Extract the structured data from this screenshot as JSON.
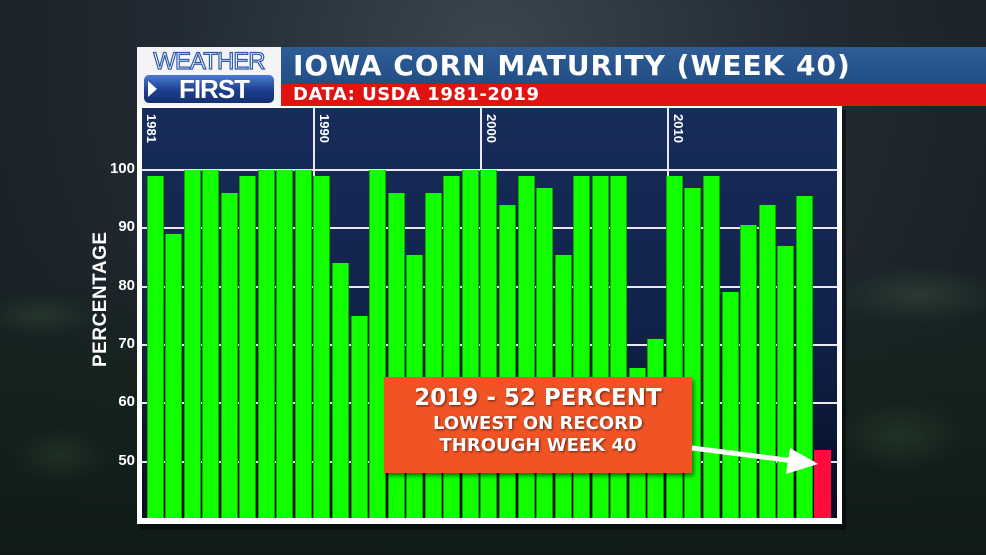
{
  "header": {
    "logo_top": "WEATHER",
    "logo_bottom": "FIRST",
    "title": "IOWA CORN MATURITY (WEEK 40)",
    "subtitle": "DATA: USDA 1981-2019"
  },
  "axis": {
    "ylabel": "PERCENTAGE",
    "yticks": [
      "100",
      "90",
      "80",
      "70",
      "60",
      "50"
    ],
    "decade_labels": [
      "1981",
      "1990",
      "2000",
      "2010"
    ]
  },
  "callout": {
    "line1": "2019 - 52 PERCENT",
    "line2": "LOWEST ON RECORD",
    "line3": "THROUGH WEEK 40"
  },
  "colors": {
    "bar": "#12ff00",
    "highlight_bar": "#ff0b3c",
    "title_bar": "#2a5590",
    "subtitle_bar": "#e11212",
    "callout": "#f05324",
    "plot_bg": "#10224a"
  },
  "chart_data": {
    "type": "bar",
    "title": "IOWA CORN MATURITY (WEEK 40)",
    "subtitle": "DATA: USDA 1981-2019",
    "xlabel": "",
    "ylabel": "PERCENTAGE",
    "ylim": [
      40,
      100
    ],
    "yticks": [
      50,
      60,
      70,
      80,
      90,
      100
    ],
    "grid": true,
    "x_tick_labels": [
      "1981",
      "1990",
      "2000",
      "2010"
    ],
    "note": "37 bars rendered; final red bar is 2019",
    "values": [
      99,
      89,
      100,
      100,
      96,
      99,
      100,
      100,
      100,
      99,
      84,
      75,
      100,
      96,
      85.5,
      96,
      99,
      100,
      100,
      94,
      99,
      97,
      85.5,
      99,
      99,
      99,
      66,
      71,
      99,
      97,
      99,
      79,
      90.5,
      94,
      87,
      95.5,
      52
    ],
    "highlight": {
      "index": 36,
      "label": "2019",
      "value": 52
    },
    "annotation": "2019 - 52 PERCENT / LOWEST ON RECORD THROUGH WEEK 40"
  }
}
